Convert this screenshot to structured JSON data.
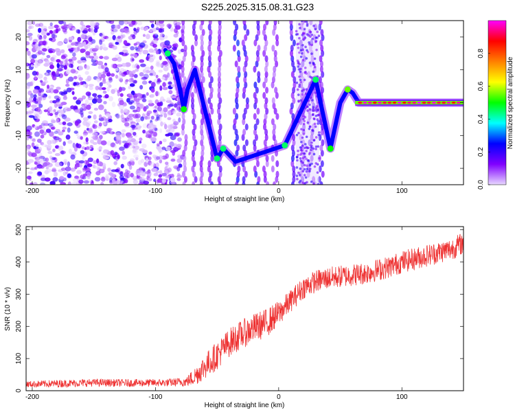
{
  "title": "S225.2025.315.08.31.G23",
  "chart_data": [
    {
      "type": "heatmap",
      "title": "S225.2025.315.08.31.G23",
      "xlabel": "Height of straight line (km)",
      "ylabel": "Frequency (Hz)",
      "xlim": [
        -205,
        150
      ],
      "ylim": [
        -25,
        25
      ],
      "x_ticks": [
        -200,
        -100,
        0,
        100
      ],
      "y_ticks": [
        -20,
        -10,
        0,
        10,
        20
      ],
      "colorbar": {
        "label": "Normalized spectral amplitude",
        "range": [
          0.0,
          1.0
        ],
        "ticks": [
          0.0,
          0.2,
          0.4,
          0.6,
          0.8
        ],
        "colors": [
          "#e8d8ff",
          "#8000ff",
          "#0000ff",
          "#00ffff",
          "#00ff00",
          "#ffff00",
          "#ff8000",
          "#ff0000",
          "#ff00ff"
        ]
      },
      "ridge_track": {
        "x": [
          -92,
          -85,
          -80,
          -77,
          -74,
          -68,
          -50,
          -45,
          -40,
          -35,
          5,
          30,
          42,
          50,
          56,
          60,
          65,
          75,
          95,
          120,
          150
        ],
        "y": [
          16,
          12,
          4,
          -2,
          4,
          10,
          -17,
          -14,
          -16,
          -18,
          -13,
          7,
          -14,
          0,
          4,
          3,
          0,
          0,
          0,
          0,
          0
        ]
      }
    },
    {
      "type": "line",
      "xlabel": "Height of straight line (km)",
      "ylabel": "SNR (10 * v/v)",
      "xlim": [
        -205,
        150
      ],
      "ylim": [
        0,
        510
      ],
      "x_ticks": [
        -200,
        -100,
        0,
        100
      ],
      "y_ticks": [
        0,
        100,
        200,
        300,
        400,
        500
      ],
      "series": [
        {
          "name": "SNR",
          "color": "#ee3333",
          "x": [
            -205,
            -180,
            -150,
            -120,
            -90,
            -75,
            -68,
            -60,
            -50,
            -40,
            -30,
            -20,
            -10,
            0,
            10,
            20,
            30,
            40,
            50,
            60,
            70,
            80,
            90,
            100,
            110,
            120,
            130,
            140,
            150
          ],
          "y": [
            20,
            22,
            25,
            24,
            25,
            28,
            45,
            75,
            110,
            150,
            175,
            195,
            210,
            240,
            280,
            320,
            340,
            350,
            355,
            360,
            365,
            375,
            385,
            400,
            410,
            420,
            430,
            440,
            460
          ],
          "noise": [
            10,
            12,
            12,
            12,
            12,
            15,
            30,
            40,
            45,
            45,
            45,
            45,
            45,
            40,
            35,
            35,
            35,
            35,
            35,
            35,
            35,
            35,
            35,
            35,
            35,
            35,
            35,
            35,
            35
          ]
        }
      ]
    }
  ]
}
